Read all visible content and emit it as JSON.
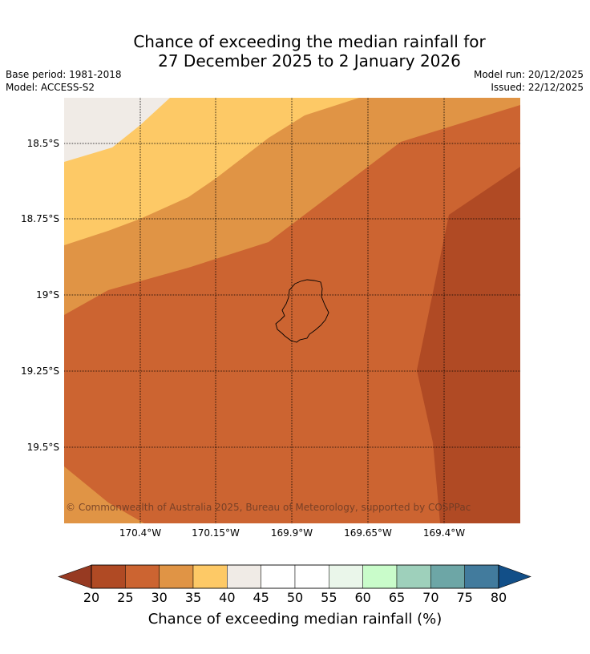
{
  "title_line1": "Chance of exceeding the median rainfall for",
  "title_line2": "27 December 2025 to 2 January 2026",
  "meta": {
    "base_period": "Base period: 1981-2018",
    "model": "Model: ACCESS-S2",
    "model_run": "Model run: 20/12/2025",
    "issued": "Issued: 22/12/2025"
  },
  "map": {
    "lat_labels": [
      "18.5°S",
      "18.75°S",
      "19°S",
      "19.25°S",
      "19.5°S"
    ],
    "lon_labels": [
      "170.4°W",
      "170.15°W",
      "169.9°W",
      "169.65°W",
      "169.4°W"
    ],
    "copyright": "© Commonwealth of Australia 2025, Bureau of Meteorology, supported by COSPPac",
    "colors": {
      "c20_25": "#b04a24",
      "c25_30": "#cc6431",
      "c30_35": "#e09445",
      "c35_40": "#fdc966",
      "c40_45": "#f0ebe6"
    }
  },
  "colorbar": {
    "ticks": [
      "20",
      "25",
      "30",
      "35",
      "40",
      "45",
      "50",
      "55",
      "60",
      "65",
      "70",
      "75",
      "80"
    ],
    "label": "Chance of exceeding median rainfall (%)",
    "colors": [
      "#b04a24",
      "#cc6431",
      "#e09445",
      "#fdc966",
      "#f0ebe6",
      "#ffffff",
      "#ffffff",
      "#eaf6ea",
      "#c9fcca",
      "#9ed0bb",
      "#6da6a6",
      "#427b9d",
      "#124f88"
    ],
    "under_color": "#973a22",
    "over_color": "#124f88"
  }
}
